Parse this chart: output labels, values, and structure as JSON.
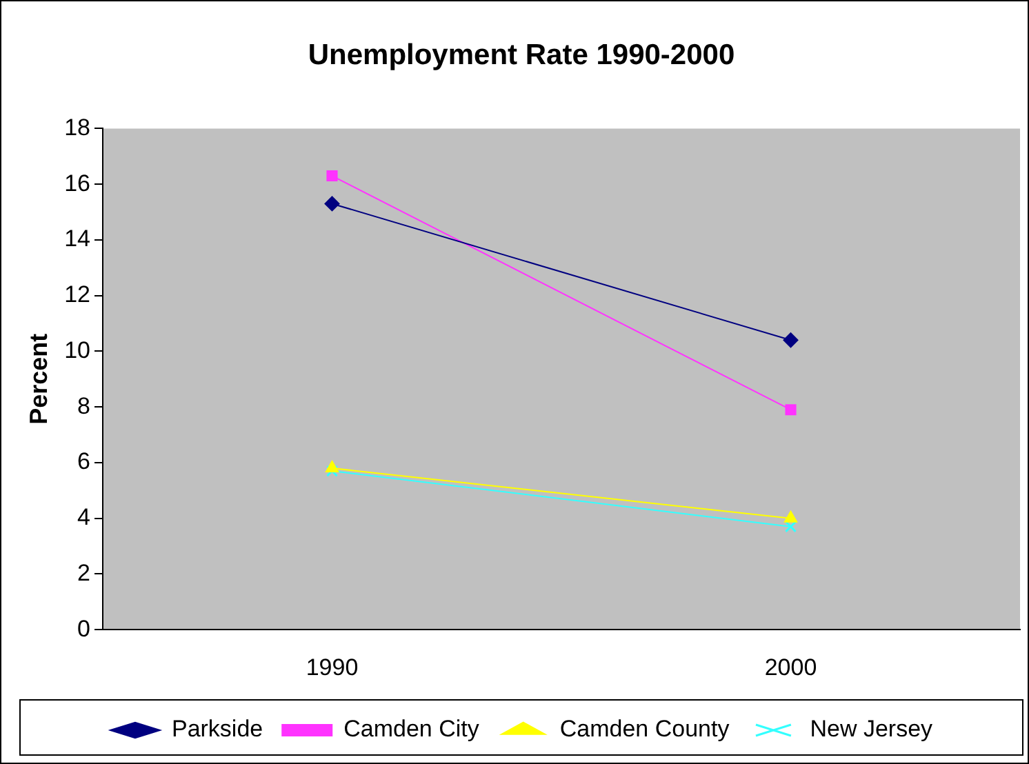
{
  "chart_data": {
    "type": "line",
    "title": "Unemployment Rate 1990-2000",
    "ylabel": "Percent",
    "categories": [
      "1990",
      "2000"
    ],
    "series": [
      {
        "name": "Parkside",
        "color": "#000080",
        "marker": "diamond",
        "values": [
          15.3,
          10.4
        ]
      },
      {
        "name": "Camden City",
        "color": "#ff33ff",
        "marker": "square",
        "values": [
          16.3,
          7.9
        ]
      },
      {
        "name": "Camden County",
        "color": "#ffff00",
        "marker": "triangle",
        "values": [
          5.8,
          4.0
        ]
      },
      {
        "name": "New Jersey",
        "color": "#33ffff",
        "marker": "cross",
        "values": [
          5.7,
          3.7
        ]
      }
    ],
    "ylim": [
      0,
      18
    ],
    "yticks": [
      0,
      2,
      4,
      6,
      8,
      10,
      12,
      14,
      16,
      18
    ],
    "grid": false,
    "legend": "bottom"
  }
}
